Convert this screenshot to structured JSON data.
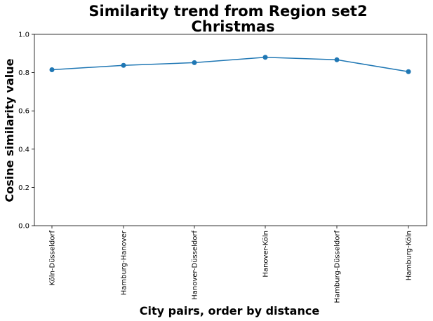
{
  "chart_data": {
    "type": "line",
    "title_line1": "Similarity trend from Region set2",
    "title_line2": "Christmas",
    "xlabel": "City pairs, order by distance",
    "ylabel": "Cosine similarity value",
    "categories": [
      "Köln-Düsseldorf",
      "Hamburg-Hanover",
      "Hanover-Düsseldorf",
      "Hanover-Köln",
      "Hamburg-Düsseldorf",
      "Hamburg-Köln"
    ],
    "values": [
      0.815,
      0.838,
      0.852,
      0.88,
      0.867,
      0.805
    ],
    "ylim": [
      0.0,
      1.0
    ],
    "yticks": [
      "0.0",
      "0.2",
      "0.4",
      "0.6",
      "0.8",
      "1.0"
    ],
    "grid": false,
    "line_color": "#1f77b4"
  }
}
